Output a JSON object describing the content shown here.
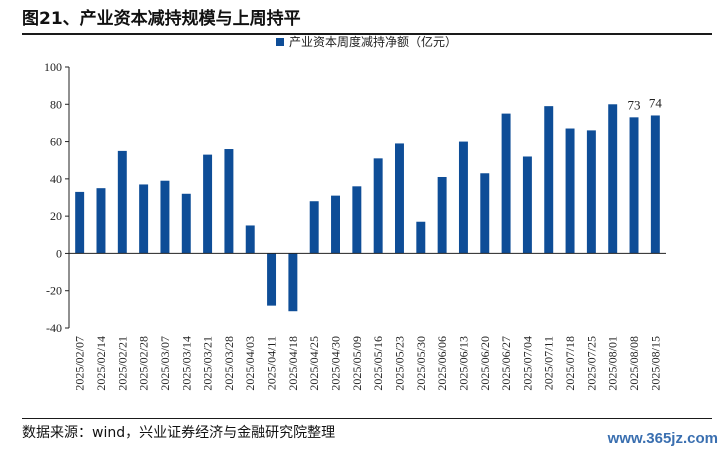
{
  "figure": {
    "title": "图21、产业资本减持规模与上周持平",
    "source": "数据来源：wind，兴业证券经济与金融研究院整理",
    "watermark": "www.365jz.com"
  },
  "chart_data": {
    "type": "bar",
    "title": "",
    "xlabel": "",
    "ylabel": "",
    "ylim": [
      -40,
      100
    ],
    "yticks": [
      -40,
      -20,
      0,
      20,
      40,
      60,
      80,
      100
    ],
    "legend": "top-center",
    "bar_color": "#0e4d97",
    "series": [
      {
        "name": "产业资本周度减持净额（亿元）",
        "values": [
          33,
          35,
          55,
          37,
          39,
          32,
          53,
          56,
          15,
          -28,
          -31,
          28,
          31,
          36,
          51,
          59,
          17,
          41,
          60,
          43,
          75,
          52,
          79,
          67,
          66,
          80,
          73,
          74
        ]
      }
    ],
    "categories": [
      "2025/02/07",
      "2025/02/14",
      "2025/02/21",
      "2025/02/28",
      "2025/03/07",
      "2025/03/14",
      "2025/03/21",
      "2025/03/28",
      "2025/04/03",
      "2025/04/11",
      "2025/04/18",
      "2025/04/25",
      "2025/04/30",
      "2025/05/09",
      "2025/05/16",
      "2025/05/23",
      "2025/05/30",
      "2025/06/06",
      "2025/06/13",
      "2025/06/20",
      "2025/06/27",
      "2025/07/04",
      "2025/07/11",
      "2025/07/18",
      "2025/07/25",
      "2025/08/01",
      "2025/08/08",
      "2025/08/15"
    ],
    "annotations": [
      {
        "index": 26,
        "text": "73"
      },
      {
        "index": 27,
        "text": "74"
      }
    ]
  }
}
